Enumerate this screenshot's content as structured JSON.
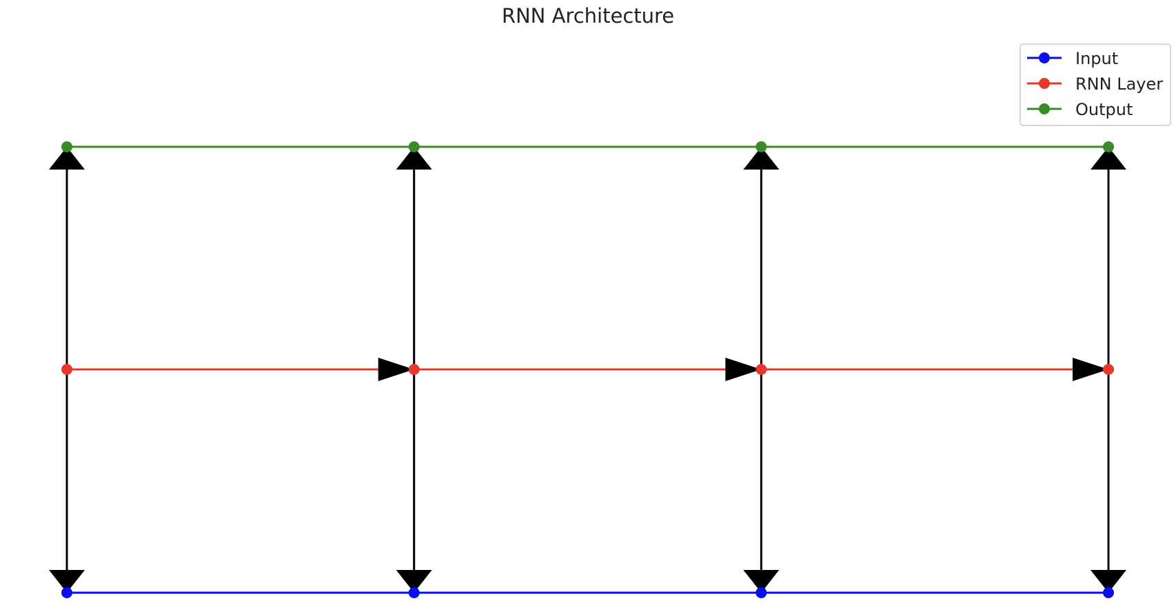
{
  "title": "RNN Architecture",
  "legend": {
    "placement": "top-right",
    "entries": [
      {
        "label": "Input",
        "color": "#0a0df0"
      },
      {
        "label": "RNN Layer",
        "color": "#e8372c"
      },
      {
        "label": "Output",
        "color": "#3a8a2a"
      }
    ]
  },
  "arrow_color": "#000000",
  "diagram": {
    "timesteps": 4,
    "layers": [
      {
        "name": "Input",
        "color": "#0a0df0",
        "level": 0
      },
      {
        "name": "RNN Layer",
        "color": "#e8372c",
        "level": 1
      },
      {
        "name": "Output",
        "color": "#3a8a2a",
        "level": 2
      }
    ],
    "connections": {
      "input_arrows": "pointing to input nodes",
      "output_arrows": "pointing to output nodes",
      "recurrent_arrows": "RNN node t to RNN node t+1"
    }
  }
}
